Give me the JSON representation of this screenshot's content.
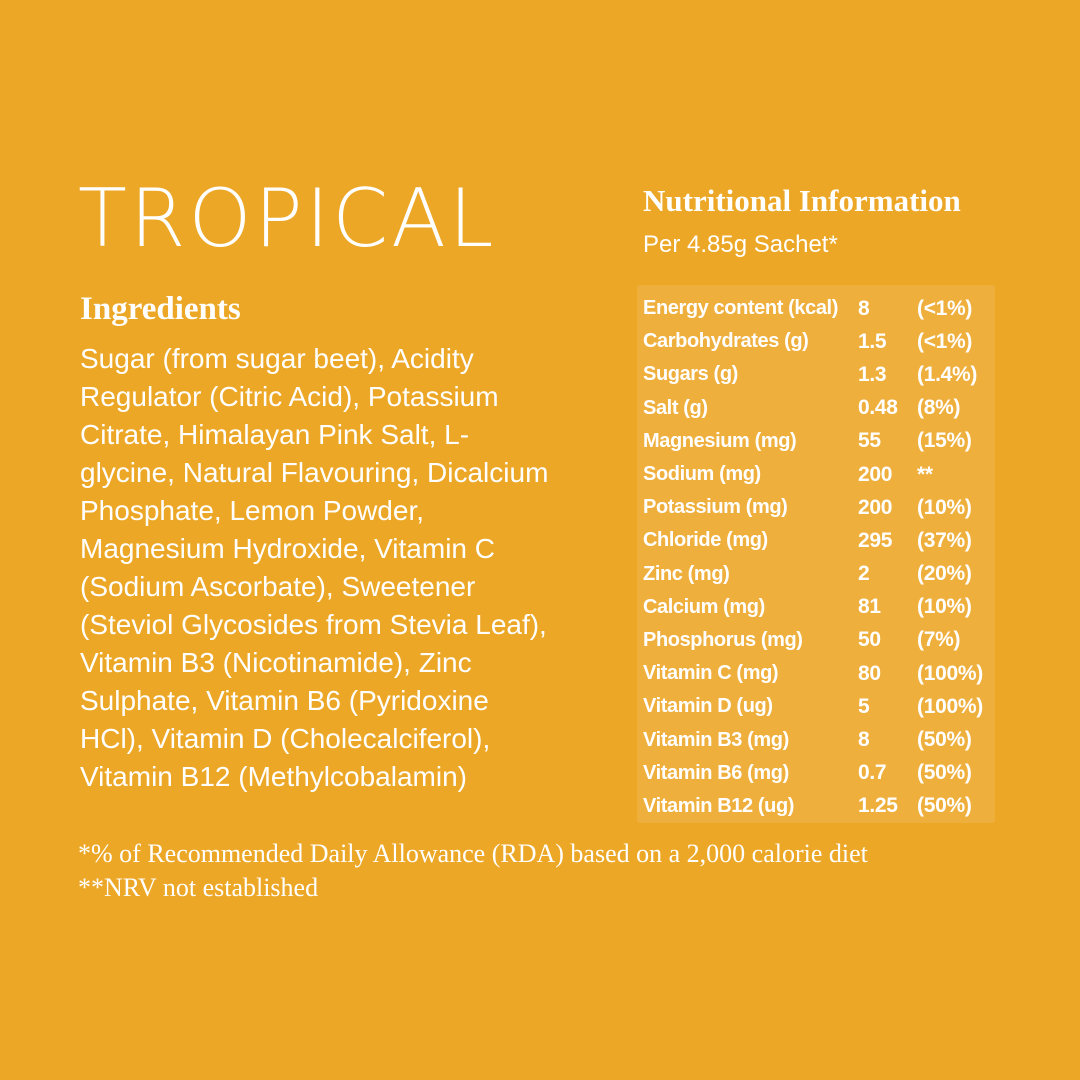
{
  "theme": {
    "background_color": "#ECA726",
    "panel_color": "#EFAF3D",
    "text_color": "#FFFFFF"
  },
  "product": {
    "flavor_title": "TROPICAL"
  },
  "ingredients": {
    "heading": "Ingredients",
    "lines": [
      "Sugar (from sugar beet), Acidity",
      "Regulator (Citric Acid), Potassium",
      "Citrate, Himalayan Pink Salt, L-",
      "glycine, Natural Flavouring, Dicalcium",
      "Phosphate, Lemon Powder,",
      "Magnesium Hydroxide, Vitamin C",
      "(Sodium Ascorbate), Sweetener",
      "(Steviol Glycosides from Stevia Leaf),",
      "Vitamin B3 (Nicotinamide), Zinc",
      "Sulphate, Vitamin B6 (Pyridoxine",
      "HCl), Vitamin D (Cholecalciferol),",
      "Vitamin B12 (Methylcobalamin)"
    ]
  },
  "nutrition": {
    "heading": "Nutritional Information",
    "serving": "Per 4.85g Sachet*",
    "rows": [
      {
        "label": "Energy content (kcal)",
        "value": "8",
        "rda": "(<1%)"
      },
      {
        "label": "Carbohydrates (g)",
        "value": "1.5",
        "rda": "(<1%)"
      },
      {
        "label": "Sugars (g)",
        "value": "1.3",
        "rda": "(1.4%)"
      },
      {
        "label": "Salt (g)",
        "value": "0.48",
        "rda": "(8%)"
      },
      {
        "label": "Magnesium (mg)",
        "value": "55",
        "rda": "(15%)"
      },
      {
        "label": "Sodium (mg)",
        "value": "200",
        "rda": "**"
      },
      {
        "label": "Potassium (mg)",
        "value": "200",
        "rda": "(10%)"
      },
      {
        "label": "Chloride (mg)",
        "value": "295",
        "rda": "(37%)"
      },
      {
        "label": "Zinc (mg)",
        "value": "2",
        "rda": "(20%)"
      },
      {
        "label": "Calcium (mg)",
        "value": "81",
        "rda": "(10%)"
      },
      {
        "label": "Phosphorus (mg)",
        "value": "50",
        "rda": "(7%)"
      },
      {
        "label": "Vitamin C (mg)",
        "value": "80",
        "rda": "(100%)"
      },
      {
        "label": "Vitamin D (ug)",
        "value": "5",
        "rda": "(100%)"
      },
      {
        "label": "Vitamin B3 (mg)",
        "value": "8",
        "rda": "(50%)"
      },
      {
        "label": "Vitamin B6 (mg)",
        "value": "0.7",
        "rda": "(50%)"
      },
      {
        "label": "Vitamin B12 (ug)",
        "value": "1.25",
        "rda": "(50%)"
      }
    ]
  },
  "footnotes": {
    "line1": "*% of Recommended Daily Allowance (RDA) based on a 2,000 calorie diet",
    "line2": "**NRV not established"
  }
}
